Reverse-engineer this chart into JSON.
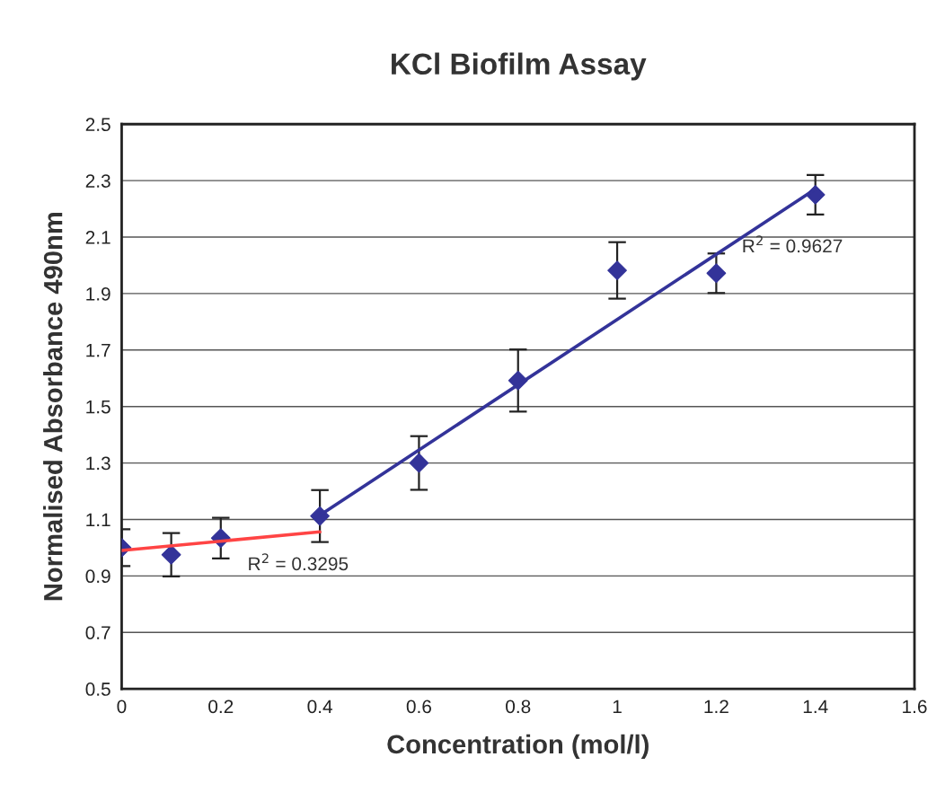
{
  "chart_data": {
    "type": "scatter",
    "title": "KCl Biofilm Assay",
    "xlabel": "Concentration (mol/l)",
    "ylabel": "Normalised Absorbance 490nm",
    "xlim": [
      0,
      1.6
    ],
    "xticks": [
      0,
      0.2,
      0.4,
      0.6,
      0.8,
      1,
      1.2,
      1.4,
      1.6
    ],
    "ylim": [
      0.5,
      2.5
    ],
    "yticks": [
      0.5,
      0.7,
      0.9,
      1.1,
      1.3,
      1.5,
      1.7,
      1.9,
      2.1,
      2.3,
      2.5
    ],
    "grid": "y",
    "legend": false,
    "series": [
      {
        "color": "#333399",
        "marker": "diamond",
        "x": [
          0,
          0.1,
          0.2,
          0.4,
          0.6,
          0.8,
          1,
          1.2,
          1.4
        ],
        "values": [
          1.0,
          0.975,
          1.034,
          1.112,
          1.3,
          1.592,
          1.982,
          1.972,
          2.25
        ],
        "errors": [
          0.065,
          0.077,
          0.072,
          0.092,
          0.095,
          0.11,
          0.1,
          0.07,
          0.07
        ]
      },
      {
        "type": "line",
        "color": "#ff4444",
        "x": [
          0,
          0.4
        ],
        "values": [
          0.99,
          1.056
        ]
      },
      {
        "type": "line",
        "color": "#333399",
        "x": [
          0.4,
          1.4
        ],
        "values": [
          1.115,
          2.27
        ]
      }
    ],
    "annotations": [
      "R$^{2}$ = 0.3295",
      "R$^{2}$ = 0.9627"
    ]
  }
}
